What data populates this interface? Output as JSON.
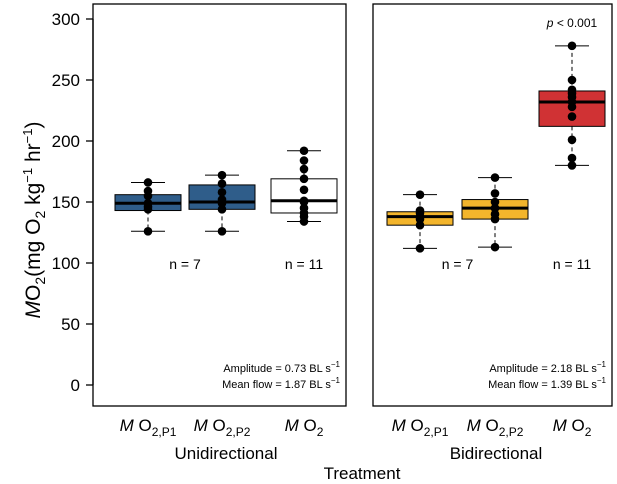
{
  "chart_data": {
    "type": "box",
    "ylabel": {
      "main": "M",
      "o2": "O",
      "o2_sub": "2",
      "units": "(mg O",
      "units_sub": "2",
      "units_kg": " kg",
      "exp1": "−1",
      "units_hr": " hr",
      "exp2": "−1",
      "close": ")"
    },
    "xlabel": "Treatment",
    "ylim": [
      0,
      300
    ],
    "yticks": [
      "0",
      "50",
      "100",
      "150",
      "200",
      "250",
      "300"
    ],
    "box_colors": {
      "unidirectional": "#2f5d8a",
      "bidirectional_low": "#f3b52c",
      "bidirectional_high": "#d03234",
      "white": "#ffffff"
    },
    "panels": [
      {
        "name": "Unidirectional",
        "categories": [
          {
            "main": "M",
            "o": " O",
            "sub": "2,P1"
          },
          {
            "main": "M",
            "o": " O",
            "sub": "2,P2"
          },
          {
            "main": "M",
            "o": " O",
            "sub": "2"
          }
        ],
        "boxes": [
          {
            "min": 126,
            "q1": 143,
            "median": 149,
            "q3": 156,
            "max": 166,
            "color": "#2f5d8a",
            "points": [
              126,
              144,
              146,
              149,
              155,
              159,
              166
            ]
          },
          {
            "min": 126,
            "q1": 144,
            "median": 150,
            "q3": 164,
            "max": 172,
            "color": "#2f5d8a",
            "points": [
              126,
              144,
              149,
              152,
              158,
              165,
              172
            ]
          },
          {
            "min": 134,
            "q1": 141,
            "median": 151,
            "q3": 169,
            "max": 192,
            "color": "#ffffff",
            "points": [
              134,
              138,
              141,
              145,
              150,
              151,
              160,
              169,
              177,
              184,
              192
            ]
          }
        ],
        "n_labels": [
          {
            "text": "n = 7",
            "between": [
              0,
              1
            ]
          },
          {
            "text": "n = 11",
            "between": [
              2,
              2
            ]
          }
        ],
        "annotation": {
          "line1": "Amplitude = 0.73 BL s",
          "line1_exp": "−1",
          "line2": "Mean flow = 1.87 BL s",
          "line2_exp": "−1"
        }
      },
      {
        "name": "Bidirectional",
        "categories": [
          {
            "main": "M",
            "o": " O",
            "sub": "2,P1"
          },
          {
            "main": "M",
            "o": " O",
            "sub": "2,P2"
          },
          {
            "main": "M",
            "o": " O",
            "sub": "2"
          }
        ],
        "boxes": [
          {
            "min": 112,
            "q1": 131,
            "median": 138,
            "q3": 142,
            "max": 156,
            "color": "#f3b52c",
            "points": [
              112,
              131,
              136,
              138,
              141,
              143,
              156
            ]
          },
          {
            "min": 113,
            "q1": 136,
            "median": 145,
            "q3": 152,
            "max": 170,
            "color": "#f3b52c",
            "points": [
              113,
              136,
              140,
              145,
              150,
              157,
              170
            ]
          },
          {
            "min": 180,
            "q1": 212,
            "median": 232,
            "q3": 241,
            "max": 278,
            "color": "#d03234",
            "points": [
              180,
              186,
              201,
              220,
              228,
              232,
              236,
              239,
              242,
              250,
              278
            ]
          }
        ],
        "n_labels": [
          {
            "text": "n = 7",
            "between": [
              0,
              1
            ]
          },
          {
            "text": "n = 11",
            "between": [
              2,
              2
            ]
          }
        ],
        "pvalue": {
          "prefix": "p",
          "rest": " < 0.001"
        },
        "annotation": {
          "line1": "Amplitude = 2.18 BL s",
          "line1_exp": "−1",
          "line2": "Mean flow = 1.39 BL s",
          "line2_exp": "−1"
        }
      }
    ]
  }
}
